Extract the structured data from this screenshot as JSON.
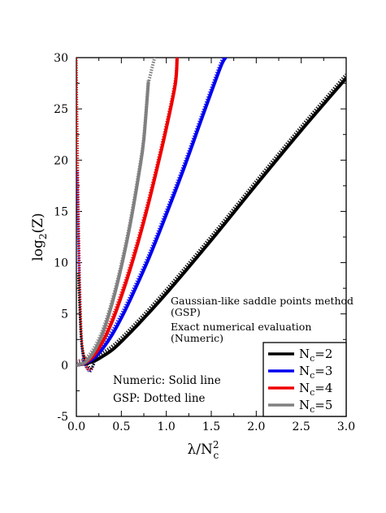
{
  "chart_data": {
    "type": "line",
    "xlabel_main": "λ/N",
    "xlabel_sup": "2",
    "xlabel_sub": "c",
    "ylabel_main": "log",
    "ylabel_sub": "2",
    "ylabel_tail": "(Z)",
    "xlim": [
      0,
      3
    ],
    "ylim": [
      -5,
      30
    ],
    "x_ticks": [
      0,
      0.5,
      1,
      1.5,
      2,
      2.5,
      3
    ],
    "x_tick_labels": [
      "0.0",
      "0.5",
      "1.0",
      "1.5",
      "2.0",
      "2.5",
      "3.0"
    ],
    "y_ticks": [
      -5,
      0,
      5,
      10,
      15,
      20,
      25,
      30
    ],
    "y_tick_labels": [
      "-5",
      "0",
      "5",
      "10",
      "15",
      "20",
      "25",
      "30"
    ],
    "grid": false,
    "legend_position": "bottom-right",
    "annotations": {
      "gsp_line1": "Gaussian-like saddle points method",
      "gsp_line2": "(GSP)",
      "num_line1": "Exact numerical evaluation",
      "num_line2": "(Numeric)",
      "solid_note": "Numeric: Solid line",
      "dotted_note": "GSP: Dotted line"
    },
    "series": [
      {
        "name": "Nc=2",
        "label_main": "N",
        "label_sub": "c",
        "label_tail": "=2",
        "color": "#000000",
        "x": [
          0,
          0.1,
          0.2,
          0.3,
          0.4,
          0.5,
          0.7,
          1.0,
          1.5,
          2.0,
          2.5,
          3.0
        ],
        "y": [
          0,
          0.15,
          0.4,
          0.9,
          1.5,
          2.3,
          4.1,
          7.0,
          12.2,
          17.6,
          22.9,
          28.0
        ]
      },
      {
        "name": "Nc=3",
        "label_main": "N",
        "label_sub": "c",
        "label_tail": "=3",
        "color": "#0000ee",
        "x": [
          0,
          0.1,
          0.2,
          0.3,
          0.4,
          0.5,
          0.6,
          0.8,
          1.0,
          1.2,
          1.4,
          1.6,
          1.66
        ],
        "y": [
          0,
          0.2,
          0.7,
          1.7,
          3.0,
          4.6,
          6.4,
          10.3,
          14.7,
          19.3,
          24.2,
          29.0,
          30.0
        ]
      },
      {
        "name": "Nc=4",
        "label_main": "N",
        "label_sub": "c",
        "label_tail": "=4",
        "color": "#ee0000",
        "x": [
          0,
          0.1,
          0.2,
          0.3,
          0.4,
          0.5,
          0.6,
          0.7,
          0.8,
          0.9,
          1.0,
          1.1,
          1.12
        ],
        "y": [
          0,
          0.25,
          1.0,
          2.4,
          4.3,
          6.7,
          9.4,
          12.4,
          15.7,
          19.3,
          23.1,
          27.4,
          30.0
        ]
      },
      {
        "name": "Nc=5",
        "label_main": "N",
        "label_sub": "c",
        "label_tail": "=5",
        "color": "#808080",
        "x": [
          0,
          0.1,
          0.2,
          0.3,
          0.4,
          0.5,
          0.6,
          0.7,
          0.75,
          0.8
        ],
        "y": [
          0,
          0.3,
          1.4,
          3.3,
          6.1,
          9.6,
          13.8,
          18.9,
          22.0,
          27.5
        ]
      }
    ],
    "gsp_extensions": [
      {
        "color": "#808080",
        "x": [
          0.8,
          0.83,
          0.87
        ],
        "y": [
          27.5,
          28.6,
          30.0
        ]
      }
    ],
    "gsp_small_lambda_branch": [
      {
        "color": "#808080",
        "x": [
          0.0,
          0.02,
          0.04,
          0.06,
          0.08,
          0.12,
          0.16,
          0.2
        ],
        "y": [
          30,
          18,
          8,
          2.5,
          0.5,
          -0.4,
          -0.6,
          0.2
        ]
      },
      {
        "color": "#0000ee",
        "x": [
          0.01,
          0.03,
          0.05,
          0.08,
          0.12,
          0.16,
          0.2
        ],
        "y": [
          19,
          9,
          3,
          0.6,
          -0.3,
          -0.5,
          0.3
        ]
      },
      {
        "color": "#ee0000",
        "x": [
          0.0,
          0.02,
          0.05,
          0.09,
          0.13,
          0.18
        ],
        "y": [
          30,
          15,
          4,
          0.6,
          -0.4,
          -0.3
        ]
      },
      {
        "color": "#000000",
        "x": [
          0.02,
          0.05,
          0.08,
          0.12,
          0.16,
          0.2
        ],
        "y": [
          9,
          3,
          1,
          0.1,
          -0.3,
          0.2
        ]
      }
    ]
  }
}
